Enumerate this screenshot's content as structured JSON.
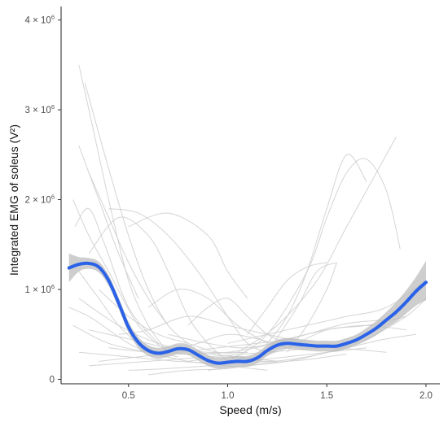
{
  "chart_data": {
    "type": "line",
    "xlabel": "Speed (m/s)",
    "ylabel": "Integrated EMG of soleus (V²)",
    "xlim": [
      0.16,
      2.07
    ],
    "ylim": [
      -0.05,
      4.15
    ],
    "y_unit": 1000000,
    "x_ticks": [
      {
        "value": 0.5,
        "label": "0.5"
      },
      {
        "value": 1.0,
        "label": "1.0"
      },
      {
        "value": 1.5,
        "label": "1.5"
      },
      {
        "value": 2.0,
        "label": "2.0"
      }
    ],
    "y_ticks": [
      {
        "value": 0,
        "mantissa": "0",
        "power": ""
      },
      {
        "value": 1,
        "mantissa": "1 × 10",
        "power": "6"
      },
      {
        "value": 2,
        "mantissa": "2 × 10",
        "power": "6"
      },
      {
        "value": 3,
        "mantissa": "3 × 10",
        "power": "6"
      },
      {
        "value": 4,
        "mantissa": "4 × 10",
        "power": "6"
      }
    ],
    "grid": false,
    "colors": {
      "smooth": "#2a62e8",
      "band": "#bdbdbd",
      "individual": "#cfcfcf"
    },
    "smooth": {
      "x": [
        0.2,
        0.25,
        0.3,
        0.35,
        0.4,
        0.45,
        0.5,
        0.55,
        0.6,
        0.65,
        0.7,
        0.75,
        0.8,
        0.85,
        0.9,
        0.95,
        1.0,
        1.05,
        1.1,
        1.15,
        1.2,
        1.25,
        1.3,
        1.35,
        1.4,
        1.45,
        1.5,
        1.55,
        1.6,
        1.65,
        1.7,
        1.75,
        1.8,
        1.85,
        1.9,
        1.95,
        2.0
      ],
      "y": [
        1.24,
        1.28,
        1.29,
        1.25,
        1.1,
        0.85,
        0.58,
        0.41,
        0.32,
        0.29,
        0.31,
        0.34,
        0.33,
        0.27,
        0.21,
        0.18,
        0.19,
        0.2,
        0.2,
        0.24,
        0.32,
        0.38,
        0.4,
        0.39,
        0.38,
        0.37,
        0.37,
        0.37,
        0.4,
        0.44,
        0.5,
        0.57,
        0.66,
        0.75,
        0.86,
        0.98,
        1.08
      ],
      "upper": [
        1.4,
        1.36,
        1.35,
        1.31,
        1.16,
        0.91,
        0.64,
        0.47,
        0.38,
        0.35,
        0.37,
        0.4,
        0.39,
        0.33,
        0.27,
        0.24,
        0.25,
        0.26,
        0.26,
        0.3,
        0.38,
        0.44,
        0.46,
        0.45,
        0.44,
        0.43,
        0.43,
        0.43,
        0.46,
        0.5,
        0.57,
        0.65,
        0.75,
        0.86,
        0.99,
        1.14,
        1.32
      ],
      "lower": [
        1.08,
        1.2,
        1.23,
        1.19,
        1.04,
        0.79,
        0.52,
        0.35,
        0.26,
        0.23,
        0.25,
        0.28,
        0.27,
        0.21,
        0.15,
        0.12,
        0.13,
        0.14,
        0.14,
        0.18,
        0.26,
        0.32,
        0.34,
        0.33,
        0.32,
        0.31,
        0.31,
        0.31,
        0.34,
        0.38,
        0.43,
        0.49,
        0.57,
        0.64,
        0.73,
        0.82,
        0.88
      ]
    },
    "individual_series": [
      {
        "x": [
          0.25,
          0.32,
          0.4,
          0.5,
          0.6,
          0.7
        ],
        "y": [
          3.5,
          2.8,
          2.0,
          1.1,
          0.6,
          0.3
        ]
      },
      {
        "x": [
          0.28,
          0.38,
          0.5,
          0.6,
          0.7,
          0.8
        ],
        "y": [
          3.3,
          2.5,
          1.6,
          1.0,
          0.6,
          0.4
        ]
      },
      {
        "x": [
          0.22,
          0.3,
          0.4,
          0.55,
          0.7
        ],
        "y": [
          2.0,
          1.6,
          1.2,
          0.6,
          0.3
        ]
      },
      {
        "x": [
          0.23,
          0.3,
          0.38,
          0.5,
          0.65
        ],
        "y": [
          1.7,
          1.9,
          1.5,
          0.8,
          0.4
        ]
      },
      {
        "x": [
          0.3,
          0.45,
          0.6,
          0.7,
          0.8,
          0.9,
          1.0
        ],
        "y": [
          1.4,
          1.8,
          1.6,
          1.2,
          0.7,
          0.4,
          0.2
        ]
      },
      {
        "x": [
          0.4,
          0.55,
          0.7,
          0.85,
          1.0,
          1.1,
          1.2
        ],
        "y": [
          1.9,
          1.85,
          1.6,
          1.2,
          0.7,
          0.4,
          0.3
        ]
      },
      {
        "x": [
          0.5,
          0.7,
          0.9,
          1.0,
          1.1
        ],
        "y": [
          1.7,
          1.85,
          1.6,
          1.2,
          0.9
        ]
      },
      {
        "x": [
          0.22,
          0.4,
          0.6,
          0.8,
          1.0,
          1.2
        ],
        "y": [
          0.6,
          0.4,
          0.3,
          0.2,
          0.15,
          0.1
        ]
      },
      {
        "x": [
          0.25,
          0.45,
          0.65,
          0.85,
          1.05,
          1.25
        ],
        "y": [
          0.9,
          0.6,
          0.4,
          0.3,
          0.25,
          0.2
        ]
      },
      {
        "x": [
          0.25,
          0.5,
          0.75,
          1.0,
          1.25
        ],
        "y": [
          0.3,
          0.25,
          0.2,
          0.18,
          0.2
        ]
      },
      {
        "x": [
          0.3,
          0.6,
          0.9,
          1.2,
          1.5,
          1.8
        ],
        "y": [
          0.15,
          0.2,
          0.25,
          0.3,
          0.35,
          0.3
        ]
      },
      {
        "x": [
          0.35,
          0.5,
          0.65,
          0.8,
          0.95,
          1.1
        ],
        "y": [
          1.0,
          0.7,
          0.5,
          0.4,
          0.3,
          0.3
        ]
      },
      {
        "x": [
          0.45,
          0.6,
          0.8,
          1.0,
          1.2,
          1.4
        ],
        "y": [
          0.5,
          0.55,
          0.7,
          0.6,
          0.5,
          0.4
        ]
      },
      {
        "x": [
          0.6,
          0.75,
          0.9,
          1.05,
          1.2
        ],
        "y": [
          0.8,
          1.0,
          0.9,
          0.6,
          0.4
        ]
      },
      {
        "x": [
          0.7,
          0.85,
          1.0,
          1.15,
          1.3
        ],
        "y": [
          0.3,
          0.4,
          0.5,
          0.45,
          0.35
        ]
      },
      {
        "x": [
          0.8,
          0.9,
          1.0,
          1.1,
          1.2,
          1.3
        ],
        "y": [
          0.6,
          0.8,
          0.9,
          0.7,
          0.5,
          0.4
        ]
      },
      {
        "x": [
          1.0,
          1.2,
          1.4,
          1.5,
          1.6,
          1.7,
          1.8,
          1.87
        ],
        "y": [
          0.2,
          0.5,
          1.2,
          1.8,
          2.3,
          2.45,
          2.1,
          1.45
        ]
      },
      {
        "x": [
          1.05,
          1.25,
          1.45,
          1.6,
          1.75,
          1.85
        ],
        "y": [
          0.3,
          0.6,
          1.1,
          1.7,
          2.3,
          2.7
        ]
      },
      {
        "x": [
          1.2,
          1.3,
          1.4,
          1.5,
          1.6,
          1.7
        ],
        "y": [
          0.4,
          0.7,
          1.2,
          1.9,
          2.5,
          2.2
        ]
      },
      {
        "x": [
          1.1,
          1.2,
          1.3,
          1.4,
          1.5
        ],
        "y": [
          0.5,
          0.8,
          1.1,
          1.25,
          1.3
        ]
      },
      {
        "x": [
          1.2,
          1.35,
          1.45,
          1.55
        ],
        "y": [
          0.3,
          0.8,
          1.2,
          1.3
        ]
      },
      {
        "x": [
          1.3,
          1.4,
          1.5,
          1.55
        ],
        "y": [
          0.3,
          0.6,
          1.0,
          1.3
        ]
      },
      {
        "x": [
          1.0,
          1.2,
          1.4,
          1.6,
          1.8,
          2.0
        ],
        "y": [
          0.4,
          0.5,
          0.6,
          0.7,
          0.8,
          1.1
        ]
      },
      {
        "x": [
          1.1,
          1.3,
          1.5,
          1.7,
          1.9
        ],
        "y": [
          0.2,
          0.35,
          0.55,
          0.6,
          0.7
        ]
      },
      {
        "x": [
          0.9,
          1.1,
          1.3,
          1.5,
          1.7,
          1.9,
          2.0
        ],
        "y": [
          0.1,
          0.15,
          0.2,
          0.3,
          0.45,
          0.7,
          0.9
        ]
      },
      {
        "x": [
          0.5,
          0.7,
          0.9,
          1.1,
          1.3,
          1.5,
          1.7
        ],
        "y": [
          0.1,
          0.12,
          0.15,
          0.2,
          0.25,
          0.3,
          0.35
        ]
      },
      {
        "x": [
          0.4,
          0.6,
          0.8,
          1.0,
          1.2,
          1.4,
          1.6,
          1.8
        ],
        "y": [
          0.35,
          0.3,
          0.28,
          0.3,
          0.38,
          0.5,
          0.62,
          0.66
        ]
      },
      {
        "x": [
          0.3,
          0.5,
          0.7,
          0.9,
          1.1
        ],
        "y": [
          0.55,
          0.45,
          0.35,
          0.3,
          0.3
        ]
      },
      {
        "x": [
          0.25,
          0.35,
          0.45,
          0.55,
          0.65,
          0.75
        ],
        "y": [
          1.2,
          0.9,
          0.6,
          0.4,
          0.3,
          0.25
        ]
      },
      {
        "x": [
          0.6,
          0.8,
          1.0,
          1.2,
          1.4,
          1.6
        ],
        "y": [
          0.05,
          0.1,
          0.12,
          0.18,
          0.22,
          0.28
        ]
      },
      {
        "x": [
          0.8,
          1.0,
          1.2,
          1.4,
          1.6,
          1.8,
          1.95
        ],
        "y": [
          0.2,
          0.25,
          0.2,
          0.25,
          0.35,
          0.45,
          0.5
        ]
      },
      {
        "x": [
          0.2,
          0.3,
          0.4,
          0.5,
          0.6
        ],
        "y": [
          0.8,
          0.7,
          0.55,
          0.4,
          0.3
        ]
      },
      {
        "x": [
          0.35,
          0.55,
          0.75,
          0.95,
          1.15,
          1.35
        ],
        "y": [
          0.2,
          0.25,
          0.3,
          0.35,
          0.4,
          0.45
        ]
      },
      {
        "x": [
          0.7,
          0.9,
          1.1,
          1.3,
          1.5,
          1.7,
          1.9
        ],
        "y": [
          0.5,
          0.4,
          0.35,
          0.45,
          0.55,
          0.6,
          0.55
        ]
      },
      {
        "x": [
          0.3,
          0.4,
          0.5,
          0.6,
          0.7
        ],
        "y": [
          2.3,
          1.8,
          1.3,
          0.9,
          0.6
        ]
      },
      {
        "x": [
          0.25,
          0.35,
          0.45,
          0.55
        ],
        "y": [
          2.6,
          2.0,
          1.4,
          0.9
        ]
      }
    ]
  }
}
